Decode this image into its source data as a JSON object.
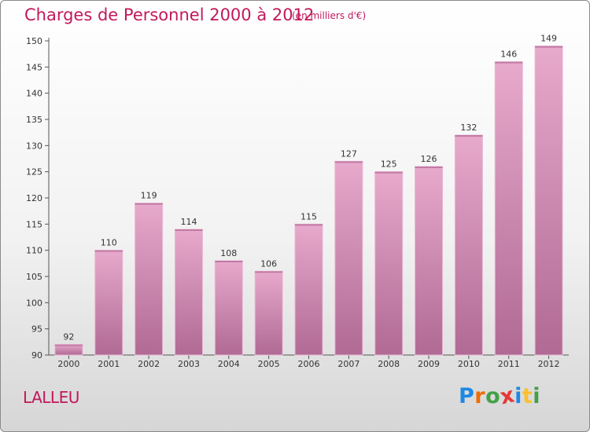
{
  "title": "Charges de Personnel 2000 à 2012",
  "unit": "(en milliers d'€)",
  "town": "LALLEU",
  "brand": {
    "letters": [
      "P",
      "r",
      "o",
      "x",
      "i",
      "t",
      "i"
    ],
    "colors": [
      "#1e88e5",
      "#ef6c00",
      "#43a047",
      "#e53935",
      "#1e88e5",
      "#fbc02d",
      "#43a047"
    ]
  },
  "chart_data": {
    "type": "bar",
    "categories": [
      "2000",
      "2001",
      "2002",
      "2003",
      "2004",
      "2005",
      "2006",
      "2007",
      "2008",
      "2009",
      "2010",
      "2011",
      "2012"
    ],
    "values": [
      92,
      110,
      119,
      114,
      108,
      106,
      115,
      127,
      125,
      126,
      132,
      146,
      149
    ],
    "ylim": [
      90,
      150
    ],
    "yticks": [
      90,
      95,
      100,
      105,
      110,
      115,
      120,
      125,
      130,
      135,
      140,
      145,
      150
    ],
    "grid": false,
    "bar_color": "#d98bb6"
  }
}
